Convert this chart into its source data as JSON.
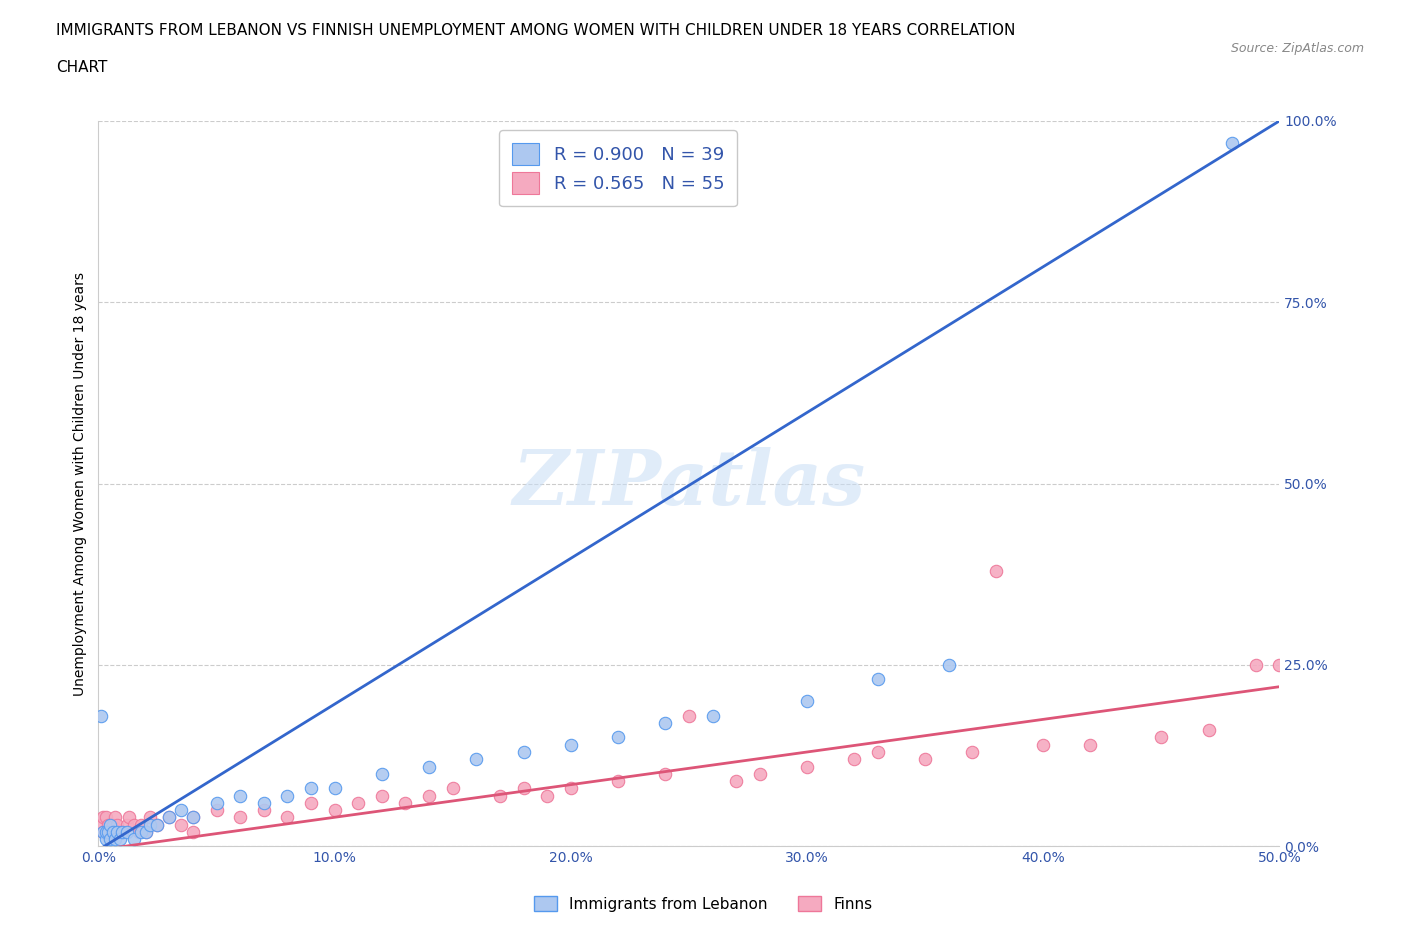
{
  "title_line1": "IMMIGRANTS FROM LEBANON VS FINNISH UNEMPLOYMENT AMONG WOMEN WITH CHILDREN UNDER 18 YEARS CORRELATION",
  "title_line2": "CHART",
  "source": "Source: ZipAtlas.com",
  "ylabel": "Unemployment Among Women with Children Under 18 years",
  "xmin": 0.0,
  "xmax": 0.5,
  "ymin": 0.0,
  "ymax": 1.0,
  "xticks": [
    0.0,
    0.1,
    0.2,
    0.3,
    0.4,
    0.5
  ],
  "yticks": [
    0.0,
    0.25,
    0.5,
    0.75,
    1.0
  ],
  "xtick_labels": [
    "0.0%",
    "10.0%",
    "20.0%",
    "30.0%",
    "40.0%",
    "50.0%"
  ],
  "ytick_labels": [
    "0.0%",
    "25.0%",
    "50.0%",
    "75.0%",
    "100.0%"
  ],
  "lebanon_R": 0.9,
  "lebanon_N": 39,
  "finns_R": 0.565,
  "finns_N": 55,
  "lebanon_color": "#adc8f0",
  "lebanon_edge_color": "#5599ee",
  "lebanon_line_color": "#3366cc",
  "finns_color": "#f5aac0",
  "finns_edge_color": "#ee7799",
  "finns_line_color": "#dd5577",
  "legend_text_color": "#3355aa",
  "watermark": "ZIPatlas",
  "background_color": "#ffffff",
  "grid_color": "#cccccc",
  "lebanon_line_x0": 0.0,
  "lebanon_line_y0": -0.005,
  "lebanon_line_x1": 0.5,
  "lebanon_line_y1": 1.0,
  "finns_line_x0": 0.0,
  "finns_line_y0": -0.005,
  "finns_line_x1": 0.5,
  "finns_line_y1": 0.22,
  "lebanon_scatter_x": [
    0.001,
    0.002,
    0.003,
    0.003,
    0.004,
    0.005,
    0.005,
    0.006,
    0.007,
    0.008,
    0.009,
    0.01,
    0.012,
    0.015,
    0.018,
    0.02,
    0.022,
    0.025,
    0.03,
    0.035,
    0.04,
    0.05,
    0.06,
    0.07,
    0.08,
    0.09,
    0.1,
    0.12,
    0.14,
    0.16,
    0.18,
    0.2,
    0.22,
    0.24,
    0.26,
    0.3,
    0.33,
    0.36,
    0.48
  ],
  "lebanon_scatter_y": [
    0.18,
    0.02,
    0.01,
    0.02,
    0.02,
    0.01,
    0.03,
    0.02,
    0.01,
    0.02,
    0.01,
    0.02,
    0.02,
    0.01,
    0.02,
    0.02,
    0.03,
    0.03,
    0.04,
    0.05,
    0.04,
    0.06,
    0.07,
    0.06,
    0.07,
    0.08,
    0.08,
    0.1,
    0.11,
    0.12,
    0.13,
    0.14,
    0.15,
    0.17,
    0.18,
    0.2,
    0.23,
    0.25,
    0.97
  ],
  "finns_scatter_x": [
    0.001,
    0.002,
    0.002,
    0.003,
    0.003,
    0.004,
    0.005,
    0.006,
    0.007,
    0.008,
    0.01,
    0.012,
    0.013,
    0.015,
    0.017,
    0.018,
    0.02,
    0.022,
    0.025,
    0.03,
    0.035,
    0.04,
    0.04,
    0.05,
    0.06,
    0.07,
    0.08,
    0.09,
    0.1,
    0.11,
    0.12,
    0.13,
    0.14,
    0.15,
    0.17,
    0.18,
    0.19,
    0.2,
    0.22,
    0.24,
    0.25,
    0.27,
    0.28,
    0.3,
    0.32,
    0.33,
    0.35,
    0.37,
    0.38,
    0.4,
    0.42,
    0.45,
    0.47,
    0.49,
    0.5
  ],
  "finns_scatter_y": [
    0.03,
    0.02,
    0.04,
    0.02,
    0.04,
    0.03,
    0.02,
    0.03,
    0.04,
    0.03,
    0.02,
    0.03,
    0.04,
    0.03,
    0.02,
    0.03,
    0.02,
    0.04,
    0.03,
    0.04,
    0.03,
    0.04,
    0.02,
    0.05,
    0.04,
    0.05,
    0.04,
    0.06,
    0.05,
    0.06,
    0.07,
    0.06,
    0.07,
    0.08,
    0.07,
    0.08,
    0.07,
    0.08,
    0.09,
    0.1,
    0.18,
    0.09,
    0.1,
    0.11,
    0.12,
    0.13,
    0.12,
    0.13,
    0.38,
    0.14,
    0.14,
    0.15,
    0.16,
    0.25,
    0.25
  ]
}
